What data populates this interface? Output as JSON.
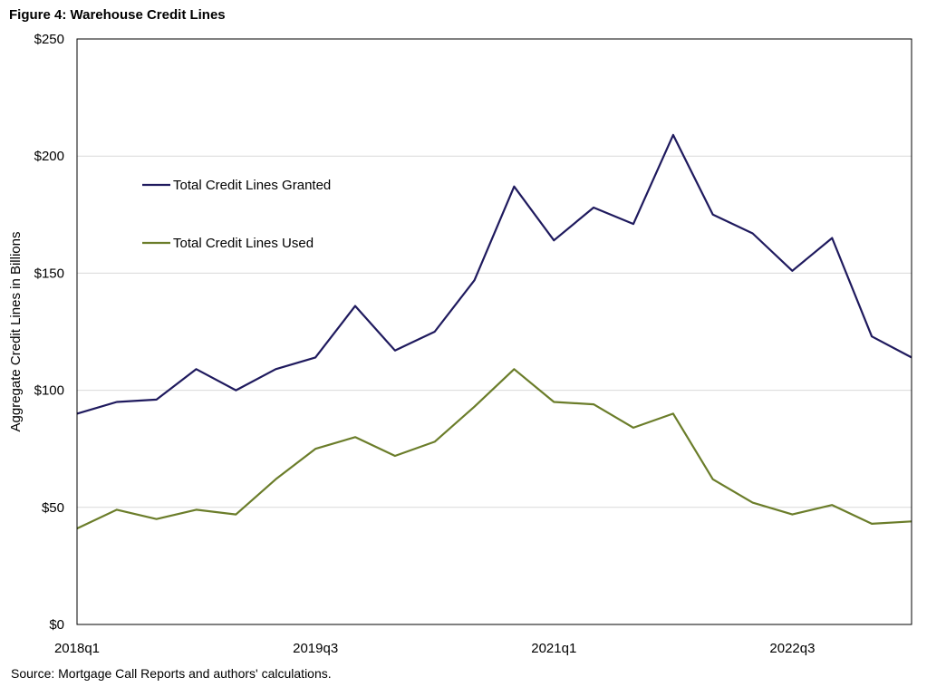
{
  "figure": {
    "title": "Figure 4: Warehouse Credit Lines",
    "source": "Source: Mortgage Call Reports and authors' calculations."
  },
  "chart_data": {
    "type": "line",
    "title": "Figure 4: Warehouse Credit Lines",
    "xlabel": "",
    "ylabel": "Aggregate Credit Lines in Billions",
    "ylim": [
      0,
      250
    ],
    "yticks": [
      0,
      50,
      100,
      150,
      200,
      250
    ],
    "ytick_labels": [
      "$0",
      "$50",
      "$100",
      "$150",
      "$200",
      "$250"
    ],
    "x": [
      "2018q1",
      "2018q2",
      "2018q3",
      "2018q4",
      "2019q1",
      "2019q2",
      "2019q3",
      "2019q4",
      "2020q1",
      "2020q2",
      "2020q3",
      "2020q4",
      "2021q1",
      "2021q2",
      "2021q3",
      "2021q4",
      "2022q1",
      "2022q2",
      "2022q3",
      "2022q4",
      "2023q1",
      "2023q2"
    ],
    "xtick_labels": [
      "2018q1",
      "2019q3",
      "2021q1",
      "2022q3"
    ],
    "grid": "horizontal",
    "legend_position": "upper-left inside",
    "series": [
      {
        "name": "Total Credit Lines Granted",
        "color": "#1f1a5e",
        "values": [
          90,
          95,
          96,
          109,
          100,
          109,
          114,
          136,
          117,
          125,
          147,
          187,
          164,
          178,
          171,
          209,
          175,
          167,
          151,
          165,
          123,
          114
        ]
      },
      {
        "name": "Total Credit Lines Used",
        "color": "#6b7d2a",
        "values": [
          41,
          49,
          45,
          49,
          47,
          62,
          75,
          80,
          72,
          78,
          93,
          109,
          95,
          94,
          84,
          90,
          62,
          52,
          47,
          51,
          43,
          44
        ]
      }
    ]
  }
}
